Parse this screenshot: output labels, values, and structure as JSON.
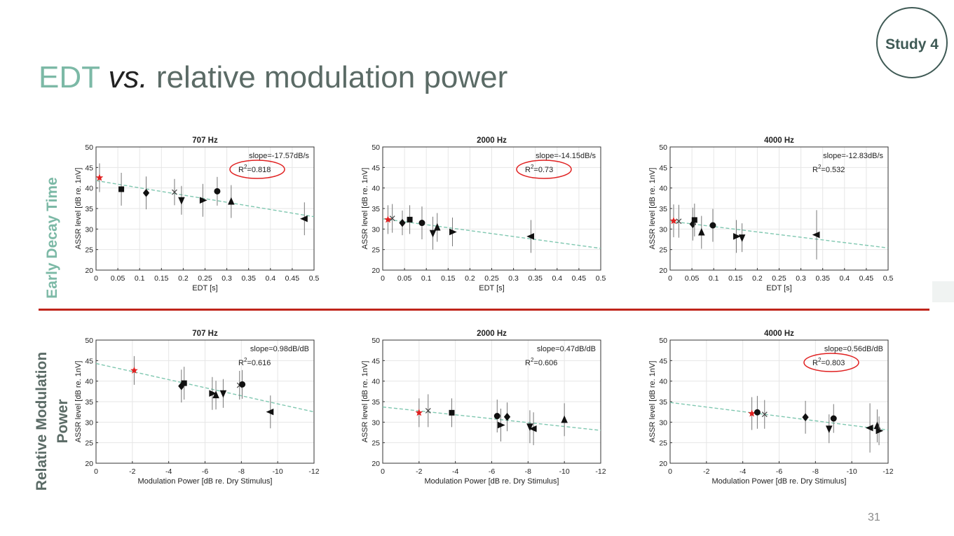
{
  "slide": {
    "title_edt": "EDT",
    "title_vs": "vs.",
    "title_rest": "relative modulation power",
    "study_badge": "Study 4",
    "row_labels": [
      "Early Decay Time",
      "Relative Modulation Power"
    ],
    "page_number": "31"
  },
  "colors": {
    "title_accent": "#7cb9a6",
    "title_gray": "#5b6b66",
    "divider": "#c0251b",
    "fit_line": "#7fc7b0",
    "dry_marker": "#e02020",
    "highlight_ellipse": "#e02020"
  },
  "chart_data": [
    {
      "type": "scatter",
      "title": "707 Hz",
      "xlabel": "EDT [s]",
      "ylabel": "ASSR level [dB re. 1nV]",
      "xlim": [
        0,
        0.5
      ],
      "ylim": [
        20,
        50
      ],
      "xticks": [
        0,
        0.05,
        0.1,
        0.15,
        0.2,
        0.25,
        0.3,
        0.35,
        0.4,
        0.45,
        0.5
      ],
      "xtick_labels": [
        "0",
        "0.05",
        "0.1",
        "0.15",
        "0.2",
        "0.25",
        "0.3",
        "0.35",
        "0.4",
        "0.45",
        "0.5"
      ],
      "yticks": [
        20,
        25,
        30,
        35,
        40,
        45,
        50
      ],
      "slope_text": "slope=-17.57dB/s",
      "r2_text": "=0.818",
      "r2_highlighted": true,
      "fit_line": [
        [
          0,
          41.8
        ],
        [
          0.5,
          33.0
        ]
      ],
      "points": [
        {
          "x": 0.008,
          "y": 42.5,
          "err": 3.5,
          "marker": "star",
          "dry": true
        },
        {
          "x": 0.058,
          "y": 39.7,
          "err": 4.0,
          "marker": "square"
        },
        {
          "x": 0.115,
          "y": 38.8,
          "err": 4.0,
          "marker": "diamond"
        },
        {
          "x": 0.18,
          "y": 39.0,
          "err": 3.2,
          "marker": "x"
        },
        {
          "x": 0.196,
          "y": 37.0,
          "err": 3.5,
          "marker": "tri-down"
        },
        {
          "x": 0.245,
          "y": 37.0,
          "err": 4.0,
          "marker": "tri-right"
        },
        {
          "x": 0.278,
          "y": 39.2,
          "err": 3.5,
          "marker": "circle"
        },
        {
          "x": 0.31,
          "y": 36.7,
          "err": 4.0,
          "marker": "tri-up"
        },
        {
          "x": 0.478,
          "y": 32.5,
          "err": 4.0,
          "marker": "tri-left"
        }
      ]
    },
    {
      "type": "scatter",
      "title": "2000 Hz",
      "xlabel": "EDT [s]",
      "ylabel": "ASSR level [dB re. 1nV]",
      "xlim": [
        0,
        0.5
      ],
      "ylim": [
        20,
        50
      ],
      "xticks": [
        0,
        0.05,
        0.1,
        0.15,
        0.2,
        0.25,
        0.3,
        0.35,
        0.4,
        0.45,
        0.5
      ],
      "xtick_labels": [
        "0",
        "0.05",
        "0.1",
        "0.15",
        "0.2",
        "0.25",
        "0.3",
        "0.35",
        "0.4",
        "0.45",
        "0.5"
      ],
      "yticks": [
        20,
        25,
        30,
        35,
        40,
        45,
        50
      ],
      "slope_text": "slope=-14.15dB/s",
      "r2_text": "=0.73",
      "r2_highlighted": true,
      "fit_line": [
        [
          0,
          32.5
        ],
        [
          0.5,
          25.3
        ]
      ],
      "points": [
        {
          "x": 0.012,
          "y": 32.3,
          "err": 3.5,
          "marker": "star",
          "dry": true
        },
        {
          "x": 0.022,
          "y": 32.6,
          "err": 3.5,
          "marker": "x"
        },
        {
          "x": 0.045,
          "y": 31.5,
          "err": 3.0,
          "marker": "diamond"
        },
        {
          "x": 0.062,
          "y": 32.3,
          "err": 3.5,
          "marker": "square"
        },
        {
          "x": 0.09,
          "y": 31.5,
          "err": 4.0,
          "marker": "circle"
        },
        {
          "x": 0.115,
          "y": 29.0,
          "err": 4.0,
          "marker": "tri-down"
        },
        {
          "x": 0.125,
          "y": 30.4,
          "err": 3.5,
          "marker": "tri-up"
        },
        {
          "x": 0.16,
          "y": 29.3,
          "err": 3.5,
          "marker": "tri-right"
        },
        {
          "x": 0.34,
          "y": 28.2,
          "err": 4.0,
          "marker": "tri-left"
        }
      ]
    },
    {
      "type": "scatter",
      "title": "4000 Hz",
      "xlabel": "EDT [s]",
      "ylabel": "ASSR level [dB re. 1nV]",
      "xlim": [
        0,
        0.5
      ],
      "ylim": [
        20,
        50
      ],
      "xticks": [
        0,
        0.05,
        0.1,
        0.15,
        0.2,
        0.25,
        0.3,
        0.35,
        0.4,
        0.45,
        0.5
      ],
      "xtick_labels": [
        "0",
        "0.05",
        "0.1",
        "0.15",
        "0.2",
        "0.25",
        "0.3",
        "0.35",
        "0.4",
        "0.45",
        "0.5"
      ],
      "yticks": [
        20,
        25,
        30,
        35,
        40,
        45,
        50
      ],
      "slope_text": "slope=-12.83dB/s",
      "r2_text": "=0.532",
      "r2_highlighted": false,
      "fit_line": [
        [
          0,
          31.9
        ],
        [
          0.5,
          25.4
        ]
      ],
      "points": [
        {
          "x": 0.008,
          "y": 32.0,
          "err": 4.0,
          "marker": "star",
          "dry": true
        },
        {
          "x": 0.02,
          "y": 31.9,
          "err": 4.0,
          "marker": "x"
        },
        {
          "x": 0.052,
          "y": 31.2,
          "err": 4.0,
          "marker": "diamond"
        },
        {
          "x": 0.056,
          "y": 32.2,
          "err": 4.0,
          "marker": "square"
        },
        {
          "x": 0.072,
          "y": 29.2,
          "err": 4.0,
          "marker": "tri-up"
        },
        {
          "x": 0.098,
          "y": 30.9,
          "err": 4.0,
          "marker": "circle"
        },
        {
          "x": 0.152,
          "y": 28.2,
          "err": 4.0,
          "marker": "tri-right"
        },
        {
          "x": 0.165,
          "y": 27.9,
          "err": 3.5,
          "marker": "tri-down"
        },
        {
          "x": 0.336,
          "y": 28.6,
          "err": 6.0,
          "marker": "tri-left"
        }
      ]
    },
    {
      "type": "scatter",
      "title": "707 Hz",
      "xlabel": "Modulation Power [dB re. Dry Stimulus]",
      "ylabel": "ASSR level [dB re. 1nV]",
      "xlim": [
        0,
        -12
      ],
      "ylim": [
        20,
        50
      ],
      "xticks": [
        0,
        -2,
        -4,
        -6,
        -8,
        -10,
        -12
      ],
      "xtick_labels": [
        "0",
        "-2",
        "-4",
        "-6",
        "-8",
        "-10",
        "-12"
      ],
      "yticks": [
        20,
        25,
        30,
        35,
        40,
        45,
        50
      ],
      "slope_text": "slope=0.98dB/dB",
      "r2_text": "=0.616",
      "r2_highlighted": false,
      "fit_line": [
        [
          0,
          44.3
        ],
        [
          -12,
          32.5
        ]
      ],
      "points": [
        {
          "x": -2.1,
          "y": 42.6,
          "err": 3.5,
          "marker": "star",
          "dry": true
        },
        {
          "x": -4.7,
          "y": 38.8,
          "err": 4.0,
          "marker": "diamond"
        },
        {
          "x": -4.85,
          "y": 39.5,
          "err": 4.0,
          "marker": "square"
        },
        {
          "x": -6.4,
          "y": 37.0,
          "err": 4.0,
          "marker": "tri-right"
        },
        {
          "x": -6.6,
          "y": 36.6,
          "err": 3.5,
          "marker": "tri-up"
        },
        {
          "x": -7.0,
          "y": 37.0,
          "err": 3.5,
          "marker": "tri-down"
        },
        {
          "x": -7.9,
          "y": 39.0,
          "err": 3.5,
          "marker": "x"
        },
        {
          "x": -8.05,
          "y": 39.2,
          "err": 3.5,
          "marker": "circle"
        },
        {
          "x": -9.6,
          "y": 32.5,
          "err": 4.0,
          "marker": "tri-left"
        }
      ]
    },
    {
      "type": "scatter",
      "title": "2000 Hz",
      "xlabel": "Modulation Power [dB re. Dry Stimulus]",
      "ylabel": "ASSR level [dB re. 1nV]",
      "xlim": [
        0,
        -12
      ],
      "ylim": [
        20,
        50
      ],
      "xticks": [
        0,
        -2,
        -4,
        -6,
        -8,
        -10,
        -12
      ],
      "xtick_labels": [
        "0",
        "-2",
        "-4",
        "-6",
        "-8",
        "-10",
        "-12"
      ],
      "yticks": [
        20,
        25,
        30,
        35,
        40,
        45,
        50
      ],
      "slope_text": "slope=0.47dB/dB",
      "r2_text": "=0.606",
      "r2_highlighted": false,
      "fit_line": [
        [
          0,
          33.7
        ],
        [
          -12,
          28.0
        ]
      ],
      "points": [
        {
          "x": -2.0,
          "y": 32.3,
          "err": 3.5,
          "marker": "star",
          "dry": true
        },
        {
          "x": -2.5,
          "y": 32.8,
          "err": 4.0,
          "marker": "x"
        },
        {
          "x": -3.8,
          "y": 32.3,
          "err": 3.5,
          "marker": "square"
        },
        {
          "x": -6.3,
          "y": 31.5,
          "err": 4.0,
          "marker": "circle"
        },
        {
          "x": -6.5,
          "y": 29.3,
          "err": 4.0,
          "marker": "tri-right"
        },
        {
          "x": -6.85,
          "y": 31.3,
          "err": 3.5,
          "marker": "diamond"
        },
        {
          "x": -8.1,
          "y": 28.9,
          "err": 4.0,
          "marker": "tri-down"
        },
        {
          "x": -8.3,
          "y": 28.4,
          "err": 4.0,
          "marker": "tri-left"
        },
        {
          "x": -10.0,
          "y": 30.6,
          "err": 4.0,
          "marker": "tri-up"
        }
      ]
    },
    {
      "type": "scatter",
      "title": "4000 Hz",
      "xlabel": "Modulation Power [dB re. Dry Stimulus]",
      "ylabel": "ASSR level [dB re. 1nV]",
      "xlim": [
        0,
        -12
      ],
      "ylim": [
        20,
        50
      ],
      "xticks": [
        0,
        -2,
        -4,
        -6,
        -8,
        -10,
        -12
      ],
      "xtick_labels": [
        "0",
        "-2",
        "-4",
        "-6",
        "-8",
        "-10",
        "-12"
      ],
      "yticks": [
        20,
        25,
        30,
        35,
        40,
        45,
        50
      ],
      "slope_text": "slope=0.56dB/dB",
      "r2_text": "=0.803",
      "r2_highlighted": true,
      "fit_line": [
        [
          0,
          34.8
        ],
        [
          -12,
          28.1
        ]
      ],
      "points": [
        {
          "x": -4.5,
          "y": 32.1,
          "err": 4.0,
          "marker": "star",
          "dry": true
        },
        {
          "x": -4.8,
          "y": 32.4,
          "err": 4.0,
          "marker": "circle"
        },
        {
          "x": -5.2,
          "y": 31.9,
          "err": 3.5,
          "marker": "x"
        },
        {
          "x": -7.45,
          "y": 31.2,
          "err": 4.0,
          "marker": "diamond"
        },
        {
          "x": -8.75,
          "y": 28.4,
          "err": 3.5,
          "marker": "tri-down"
        },
        {
          "x": -9.0,
          "y": 30.9,
          "err": 3.5,
          "marker": "circle"
        },
        {
          "x": -11.0,
          "y": 28.6,
          "err": 6.0,
          "marker": "tri-left"
        },
        {
          "x": -11.4,
          "y": 29.1,
          "err": 4.0,
          "marker": "tri-up"
        },
        {
          "x": -11.5,
          "y": 27.9,
          "err": 3.5,
          "marker": "tri-right"
        }
      ]
    }
  ]
}
